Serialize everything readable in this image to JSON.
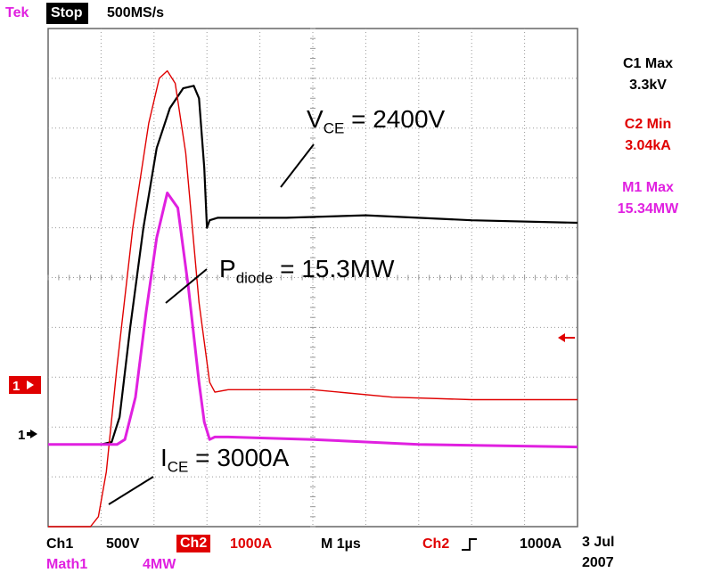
{
  "header": {
    "brand": "Tek",
    "run_state": "Stop",
    "sample_rate": "500MS/s"
  },
  "measurements": [
    {
      "name": "C1 Max",
      "value": "3.3kV",
      "color": "#000000"
    },
    {
      "name": "C2 Min",
      "value": "3.04kA",
      "color": "#e00000"
    },
    {
      "name": "M1 Max",
      "value": "15.34MW",
      "color": "#e020e0"
    }
  ],
  "markers": {
    "ch2_marker": "1",
    "ch1_marker": "1"
  },
  "footer": {
    "ch1_label": "Ch1",
    "ch1_scale": "500V",
    "ch2_label": "Ch2",
    "ch2_scale": "1000A",
    "timebase": "M 1µs",
    "trigger_source": "Ch2",
    "trigger_level": "1000A",
    "math_label": "Math1",
    "math_scale": "4MW",
    "date_line1": "3 Jul",
    "date_line2": "2007"
  },
  "annotations": {
    "vce": {
      "sym": "V",
      "sub": "CE",
      "rest": " = 2400V"
    },
    "pdiode": {
      "sym": "P",
      "sub": "diode",
      "rest": " = 15.3MW"
    },
    "ice": {
      "sym": "I",
      "sub": "CE",
      "rest": " = 3000A"
    }
  },
  "chart_data": {
    "type": "line",
    "grid": true,
    "x_unit": "div",
    "y_unit": "div",
    "xlim": [
      0,
      10
    ],
    "ylim": [
      0,
      10
    ],
    "series": [
      {
        "color": "#000000",
        "x": [
          0,
          1.0,
          1.2,
          1.35,
          1.55,
          1.8,
          2.05,
          2.3,
          2.55,
          2.75,
          2.85,
          2.95,
          3.0,
          3.05,
          3.2,
          4.5,
          6.0,
          8.0,
          10.0
        ],
        "y": [
          1.65,
          1.65,
          1.7,
          2.2,
          4.0,
          6.0,
          7.6,
          8.4,
          8.8,
          8.85,
          8.6,
          7.2,
          6.0,
          6.15,
          6.2,
          6.2,
          6.25,
          6.15,
          6.1
        ]
      },
      {
        "color": "#e00000",
        "x": [
          0,
          0.8,
          0.95,
          1.1,
          1.3,
          1.6,
          1.9,
          2.1,
          2.25,
          2.4,
          2.6,
          2.85,
          3.05,
          3.15,
          3.4,
          5.0,
          6.5,
          8.0,
          10.0
        ],
        "y": [
          0.0,
          0.0,
          0.2,
          1.1,
          3.2,
          6.0,
          8.1,
          9.0,
          9.15,
          8.9,
          7.5,
          4.5,
          2.9,
          2.7,
          2.75,
          2.75,
          2.6,
          2.55,
          2.55
        ]
      },
      {
        "color": "#e020e0",
        "x": [
          0,
          1.3,
          1.45,
          1.65,
          1.85,
          2.05,
          2.25,
          2.45,
          2.65,
          2.85,
          2.95,
          3.05,
          3.15,
          3.4,
          5.0,
          7.0,
          10.0
        ],
        "y": [
          1.65,
          1.65,
          1.75,
          2.6,
          4.3,
          5.8,
          6.7,
          6.4,
          4.8,
          2.9,
          2.1,
          1.75,
          1.8,
          1.8,
          1.75,
          1.65,
          1.6
        ]
      }
    ]
  }
}
